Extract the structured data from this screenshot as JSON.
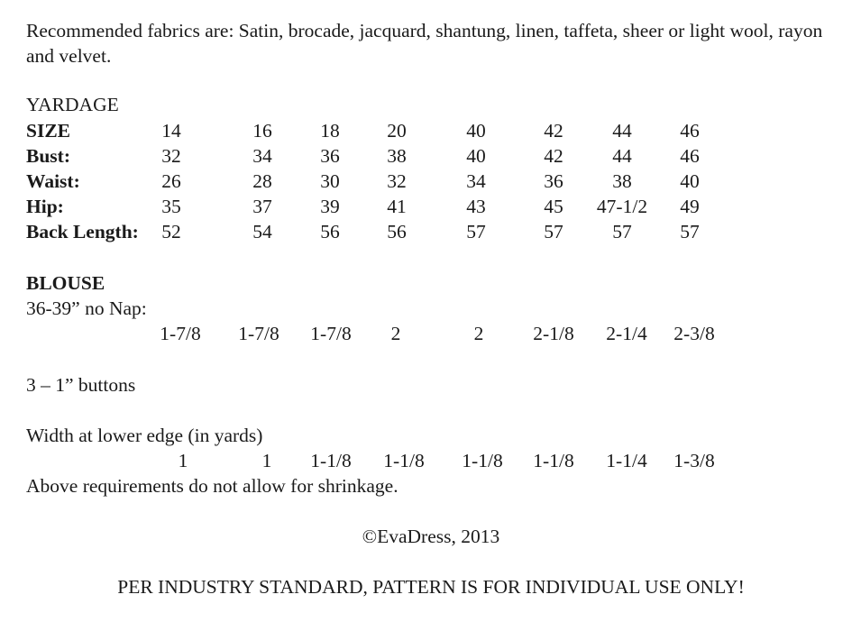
{
  "intro": "Recommended fabrics are: Satin, brocade, jacquard, shantung, linen, taffeta, sheer or light wool, rayon and velvet.",
  "yardage_heading": "YARDAGE",
  "size_rows": [
    {
      "label": "SIZE",
      "values": [
        "14",
        "16",
        "18",
        "20",
        "40",
        "42",
        "44",
        "46"
      ]
    },
    {
      "label": "Bust:",
      "values": [
        "32",
        "34",
        "36",
        "38",
        "40",
        "42",
        "44",
        "46"
      ]
    },
    {
      "label": "Waist:",
      "values": [
        "26",
        "28",
        "30",
        "32",
        "34",
        "36",
        "38",
        "40"
      ]
    },
    {
      "label": "Hip:",
      "values": [
        "35",
        "37",
        "39",
        "41",
        "43",
        "45",
        "47-1/2",
        "49"
      ]
    },
    {
      "label": "Back Length:",
      "values": [
        "52",
        "54",
        "56",
        "56",
        "57",
        "57",
        "57",
        "57"
      ]
    }
  ],
  "blouse": {
    "heading": "BLOUSE",
    "nap_label": "36-39” no Nap:",
    "nap_values": [
      "1-7/8",
      "1-7/8",
      "1-7/8",
      "2",
      "2",
      "2-1/8",
      "2-1/4",
      "2-3/8"
    ],
    "buttons": "3 – 1” buttons",
    "width_label": "Width at lower edge (in yards)",
    "width_values": [
      "1",
      "1",
      "1-1/8",
      "1-1/8",
      "1-1/8",
      "1-1/8",
      "1-1/4",
      "1-3/8"
    ],
    "shrinkage_note": "Above requirements do not allow for shrinkage."
  },
  "copyright": "©EvaDress, 2013",
  "footer_notice": "PER INDUSTRY STANDARD, PATTERN IS FOR INDIVIDUAL USE ONLY!"
}
